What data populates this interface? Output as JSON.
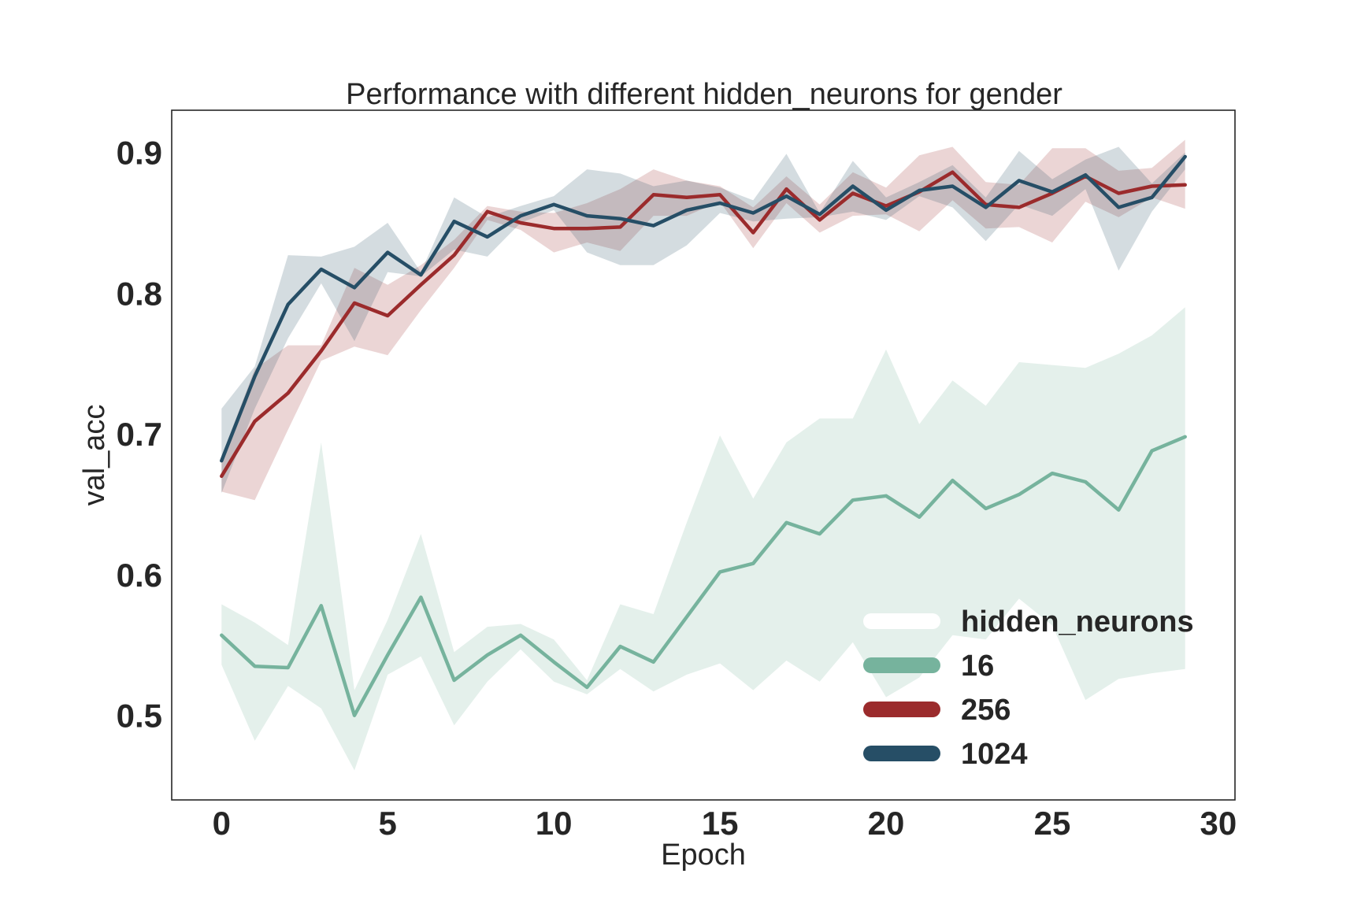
{
  "chart_data": {
    "type": "line",
    "title": "Performance with different hidden_neurons for gender",
    "xlabel": "Epoch",
    "ylabel": "val_acc",
    "xlim": [
      -1.5,
      30.5
    ],
    "ylim": [
      0.44,
      0.93
    ],
    "xticks": [
      0,
      5,
      10,
      15,
      20,
      25,
      30
    ],
    "yticks": [
      0.5,
      0.6,
      0.7,
      0.8,
      0.9
    ],
    "xtick_labels": [
      "0",
      "5",
      "10",
      "15",
      "20",
      "25",
      "30"
    ],
    "ytick_labels": [
      "0.5",
      "0.6",
      "0.7",
      "0.8",
      "0.9"
    ],
    "grid": false,
    "legend": {
      "title": "hidden_neurons",
      "position": "lower-right"
    },
    "x": [
      0,
      1,
      2,
      3,
      4,
      5,
      6,
      7,
      8,
      9,
      10,
      11,
      12,
      13,
      14,
      15,
      16,
      17,
      18,
      19,
      20,
      21,
      22,
      23,
      24,
      25,
      26,
      27,
      28,
      29
    ],
    "series": [
      {
        "name": "16",
        "color": "#76b39d",
        "values": [
          0.557,
          0.535,
          0.534,
          0.578,
          0.5,
          0.543,
          0.584,
          0.525,
          0.543,
          0.557,
          0.538,
          0.52,
          0.549,
          0.538,
          0.57,
          0.602,
          0.608,
          0.637,
          0.629,
          0.653,
          0.656,
          0.641,
          0.667,
          0.647,
          0.657,
          0.672,
          0.666,
          0.646,
          0.688,
          0.698
        ],
        "upper": [
          0.579,
          0.566,
          0.55,
          0.694,
          0.518,
          0.568,
          0.629,
          0.545,
          0.563,
          0.565,
          0.554,
          0.525,
          0.579,
          0.572,
          0.637,
          0.699,
          0.654,
          0.694,
          0.711,
          0.711,
          0.76,
          0.707,
          0.738,
          0.72,
          0.751,
          0.749,
          0.747,
          0.757,
          0.77,
          0.79
        ],
        "lower": [
          0.536,
          0.482,
          0.521,
          0.505,
          0.461,
          0.529,
          0.542,
          0.493,
          0.524,
          0.547,
          0.524,
          0.515,
          0.533,
          0.517,
          0.529,
          0.537,
          0.518,
          0.539,
          0.524,
          0.552,
          0.513,
          0.527,
          0.557,
          0.554,
          0.583,
          0.564,
          0.511,
          0.526,
          0.53,
          0.533
        ]
      },
      {
        "name": "256",
        "color": "#9b2b2c",
        "values": [
          0.67,
          0.709,
          0.729,
          0.759,
          0.793,
          0.784,
          0.806,
          0.827,
          0.858,
          0.85,
          0.846,
          0.846,
          0.847,
          0.87,
          0.868,
          0.87,
          0.843,
          0.874,
          0.852,
          0.871,
          0.862,
          0.872,
          0.886,
          0.863,
          0.861,
          0.871,
          0.883,
          0.871,
          0.876,
          0.877
        ],
        "upper": [
          0.684,
          0.746,
          0.763,
          0.763,
          0.818,
          0.806,
          0.82,
          0.838,
          0.862,
          0.858,
          0.857,
          0.864,
          0.874,
          0.888,
          0.88,
          0.876,
          0.861,
          0.883,
          0.863,
          0.886,
          0.875,
          0.898,
          0.904,
          0.879,
          0.877,
          0.903,
          0.903,
          0.887,
          0.889,
          0.909
        ],
        "lower": [
          0.659,
          0.653,
          0.703,
          0.752,
          0.762,
          0.756,
          0.788,
          0.818,
          0.852,
          0.845,
          0.829,
          0.836,
          0.83,
          0.855,
          0.855,
          0.865,
          0.832,
          0.864,
          0.843,
          0.855,
          0.856,
          0.844,
          0.866,
          0.846,
          0.847,
          0.836,
          0.865,
          0.854,
          0.868,
          0.86
        ]
      },
      {
        "name": "1024",
        "color": "#264e66",
        "values": [
          0.681,
          0.741,
          0.792,
          0.817,
          0.804,
          0.829,
          0.813,
          0.851,
          0.84,
          0.855,
          0.863,
          0.855,
          0.853,
          0.848,
          0.859,
          0.864,
          0.857,
          0.869,
          0.856,
          0.876,
          0.859,
          0.873,
          0.876,
          0.861,
          0.88,
          0.872,
          0.884,
          0.861,
          0.868,
          0.897
        ],
        "upper": [
          0.718,
          0.748,
          0.827,
          0.826,
          0.833,
          0.85,
          0.815,
          0.868,
          0.854,
          0.862,
          0.869,
          0.888,
          0.885,
          0.876,
          0.88,
          0.875,
          0.866,
          0.899,
          0.857,
          0.894,
          0.868,
          0.879,
          0.891,
          0.868,
          0.901,
          0.881,
          0.895,
          0.904,
          0.878,
          0.9
        ],
        "lower": [
          0.658,
          0.718,
          0.768,
          0.807,
          0.766,
          0.815,
          0.812,
          0.831,
          0.826,
          0.85,
          0.859,
          0.829,
          0.82,
          0.82,
          0.834,
          0.857,
          0.851,
          0.853,
          0.854,
          0.858,
          0.852,
          0.869,
          0.861,
          0.837,
          0.863,
          0.855,
          0.874,
          0.816,
          0.858,
          0.888
        ]
      }
    ]
  }
}
